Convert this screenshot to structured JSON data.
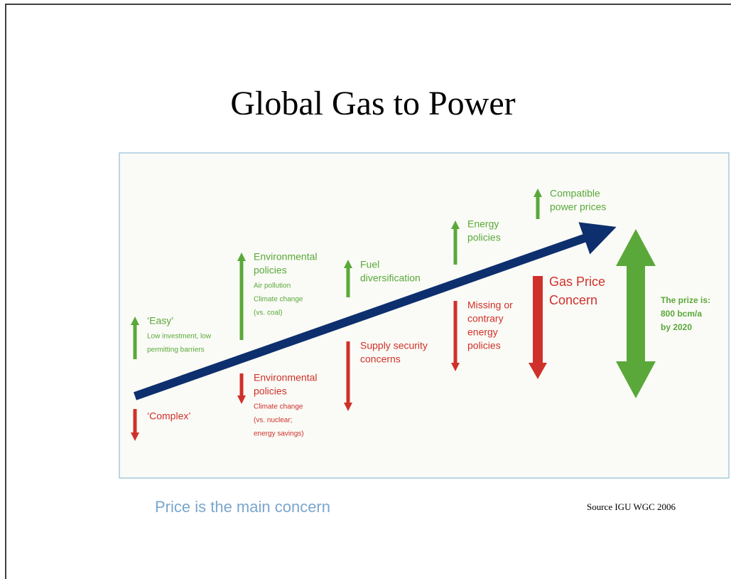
{
  "title": "Global Gas to Power",
  "drivers": [
    {
      "heading": [
        "‘Easy’"
      ],
      "details": [
        "Low investment, low",
        "permitting barriers"
      ]
    },
    {
      "heading": [
        "Environmental",
        "policies"
      ],
      "details": [
        "Air pollution",
        "Climate change",
        "(vs. coal)"
      ]
    },
    {
      "heading": [
        "Fuel",
        "diversification"
      ],
      "details": []
    },
    {
      "heading": [
        "Energy",
        "policies"
      ],
      "details": []
    },
    {
      "heading": [
        "Compatible",
        "power prices"
      ],
      "details": []
    }
  ],
  "barriers": [
    {
      "heading": [
        "‘Complex’"
      ],
      "details": []
    },
    {
      "heading": [
        "Environmental",
        "policies"
      ],
      "details": [
        "Climate change",
        "(vs. nuclear;",
        "energy savings)"
      ]
    },
    {
      "heading": [
        "Supply security",
        "concerns"
      ],
      "details": []
    },
    {
      "heading": [
        "Missing or",
        "contrary",
        "energy",
        "policies"
      ],
      "details": []
    }
  ],
  "gas_price_concern": [
    "Gas Price",
    "Concern"
  ],
  "prize": [
    "The prize is:",
    "800 bcm/a",
    "by 2020"
  ],
  "caption": "Price is the main concern",
  "source": "Source IGU WGC 2006"
}
